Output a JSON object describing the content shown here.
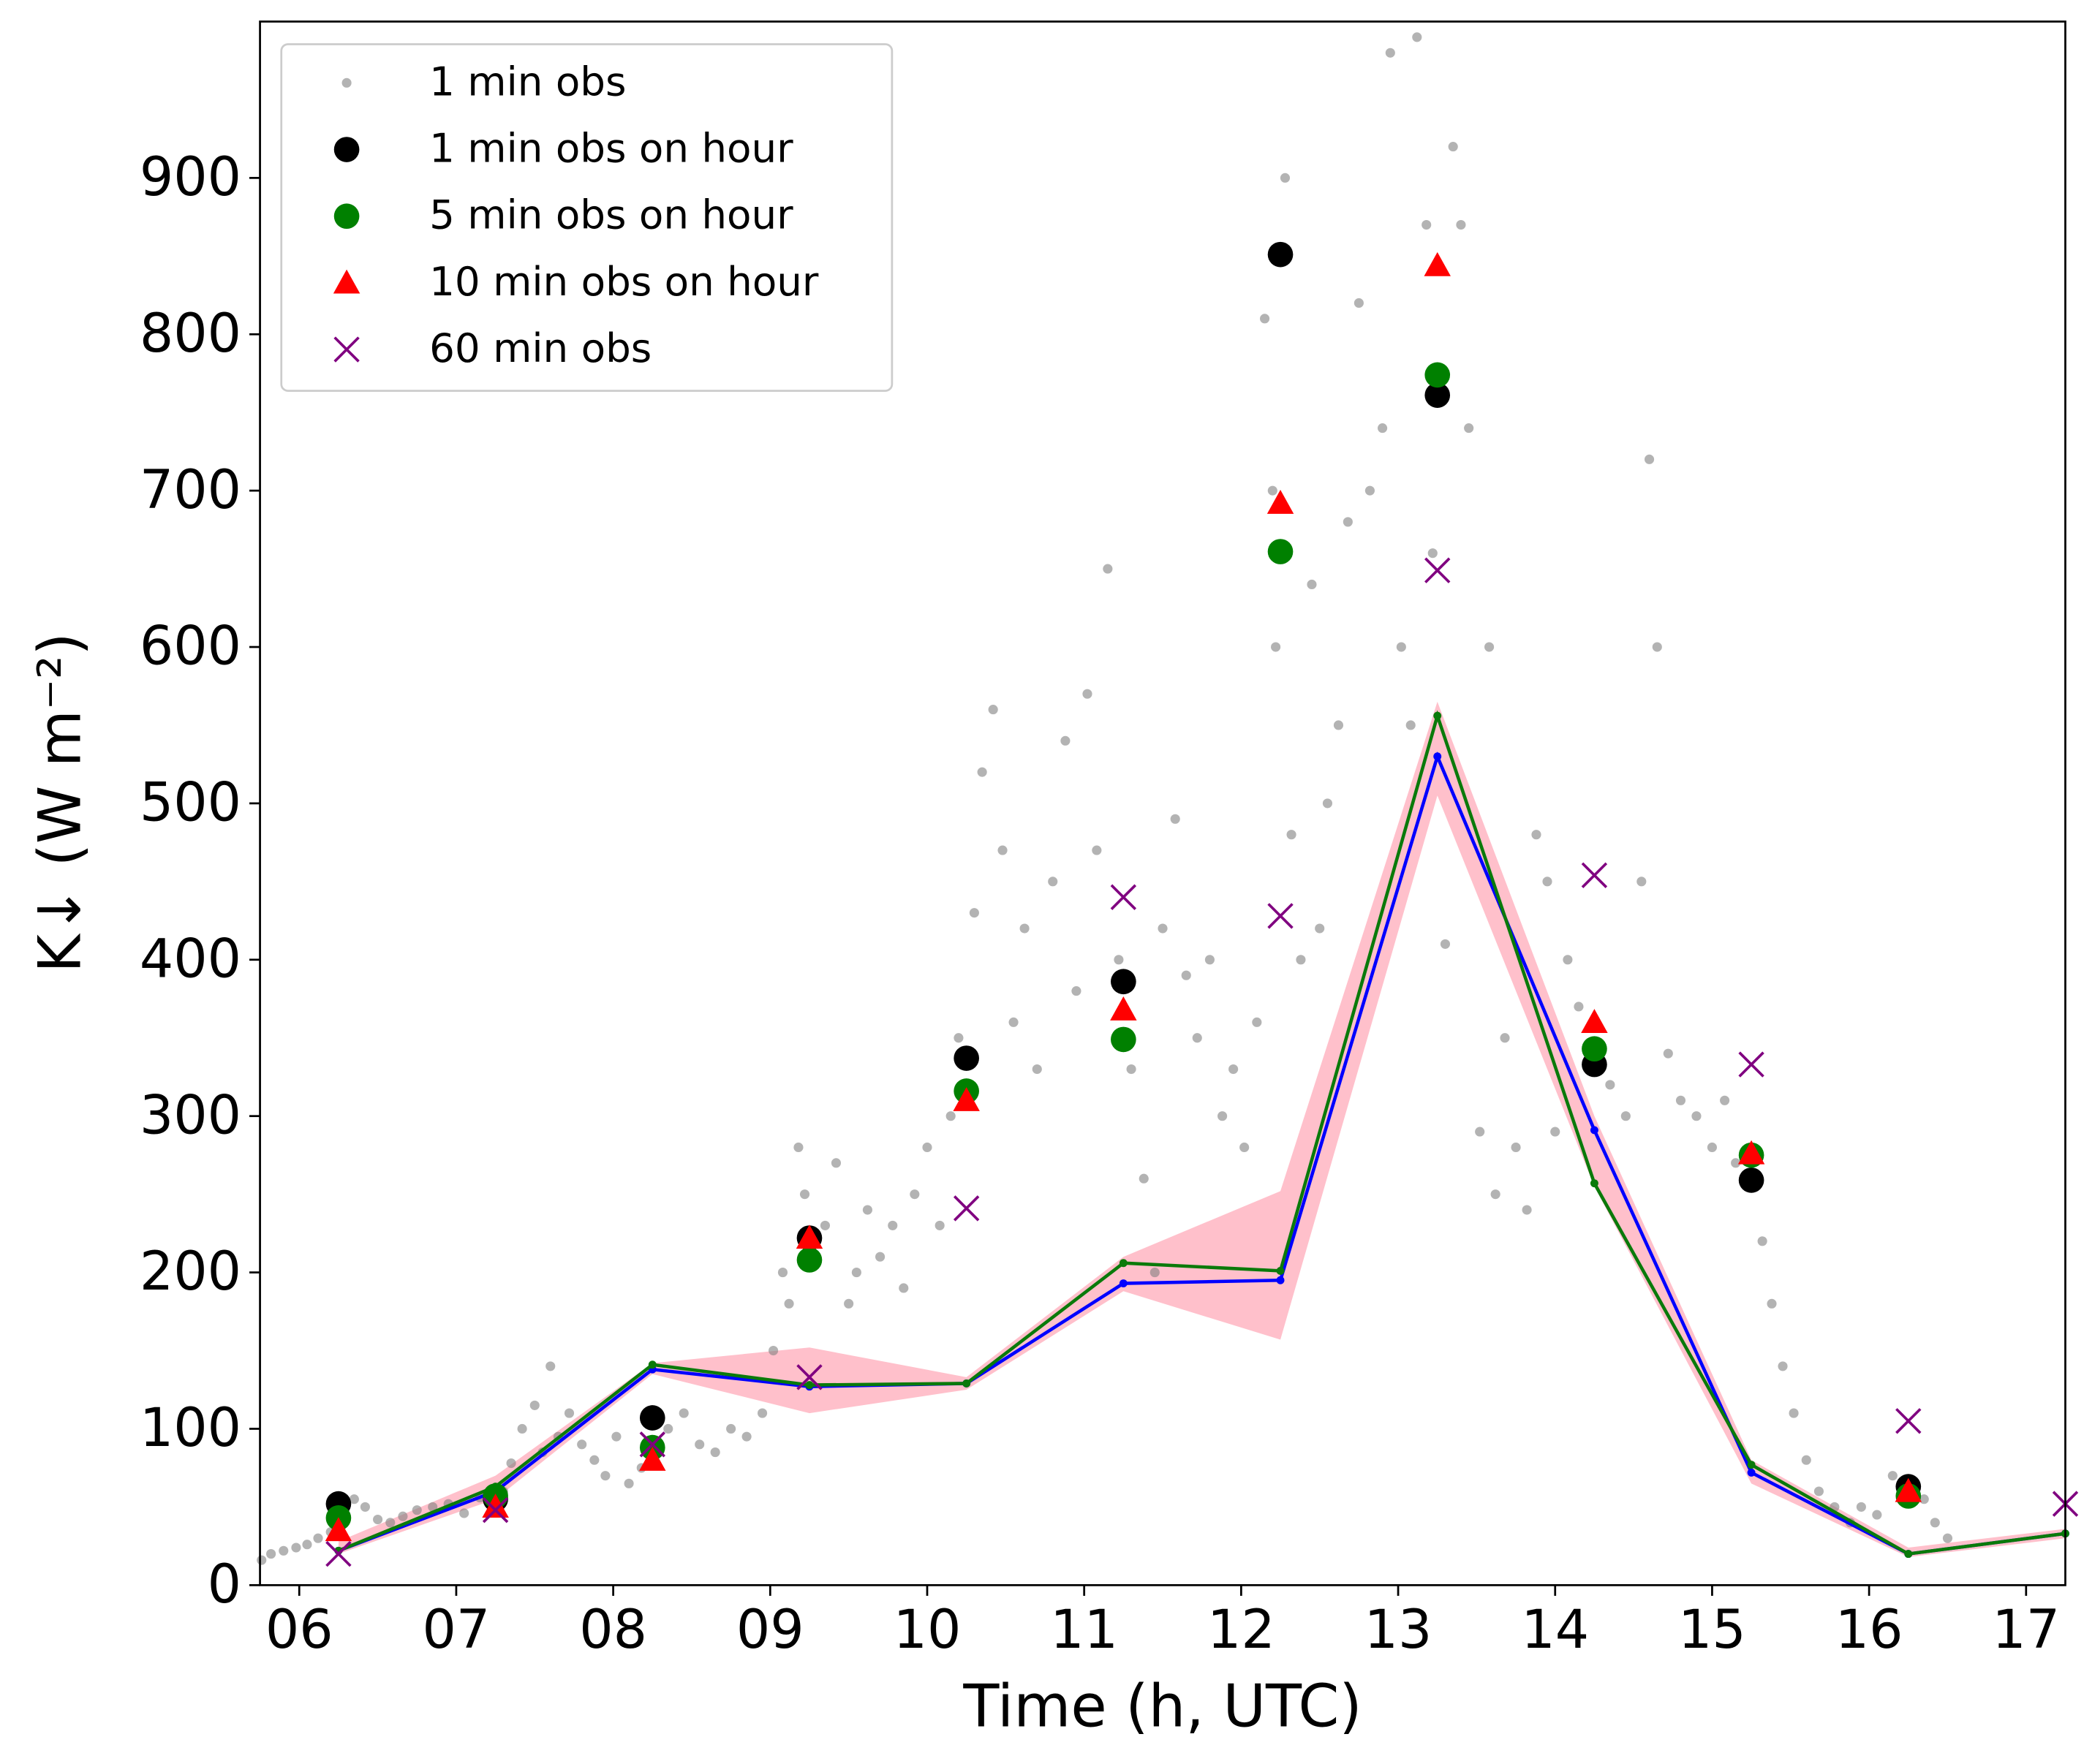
{
  "chart_data": {
    "type": "line",
    "xlabel": "Time (h, UTC)",
    "ylabel": "K↓ (W m⁻²)",
    "xlim": [
      5.75,
      17.25
    ],
    "ylim": [
      0,
      1000
    ],
    "xticks": [
      {
        "value": 6,
        "label": "06"
      },
      {
        "value": 7,
        "label": "07"
      },
      {
        "value": 8,
        "label": "08"
      },
      {
        "value": 9,
        "label": "09"
      },
      10,
      11,
      12,
      13,
      14,
      15,
      16,
      17
    ],
    "yticks": [
      0,
      100,
      200,
      300,
      400,
      500,
      600,
      700,
      800,
      900
    ],
    "legend": "upper-left",
    "band": {
      "color": "#ffc0cb",
      "x": [
        6.25,
        7.25,
        8.25,
        9.25,
        10.25,
        11.25,
        12.25,
        13.25,
        14.25,
        15.25,
        16.25,
        17.25
      ],
      "lower": [
        20,
        55,
        135,
        110,
        125,
        188,
        157,
        505,
        255,
        65,
        18,
        30
      ],
      "upper": [
        28,
        70,
        142,
        152,
        133,
        210,
        252,
        565,
        300,
        80,
        24,
        36
      ]
    },
    "series": [
      {
        "name": "1 min obs",
        "color": "#808080",
        "marker": "dot",
        "x": [
          5.76,
          5.82,
          5.9,
          5.98,
          6.05,
          6.12,
          6.2,
          6.3,
          6.35,
          6.42,
          6.5,
          6.58,
          6.66,
          6.75,
          6.85,
          6.95,
          7.05,
          7.15,
          7.3,
          7.35,
          7.42,
          7.5,
          7.55,
          7.6,
          7.65,
          7.72,
          7.8,
          7.88,
          7.95,
          8.02,
          8.1,
          8.18,
          8.35,
          8.45,
          8.55,
          8.65,
          8.75,
          8.85,
          8.95,
          9.02,
          9.08,
          9.12,
          9.18,
          9.22,
          9.35,
          9.42,
          9.5,
          9.55,
          9.62,
          9.7,
          9.78,
          9.85,
          9.92,
          10.0,
          10.08,
          10.15,
          10.2,
          10.3,
          10.35,
          10.42,
          10.48,
          10.55,
          10.62,
          10.7,
          10.8,
          10.88,
          10.95,
          11.02,
          11.08,
          11.15,
          11.22,
          11.3,
          11.38,
          11.45,
          11.5,
          11.58,
          11.65,
          11.72,
          11.8,
          11.88,
          11.95,
          12.02,
          12.1,
          12.15,
          12.2,
          12.22,
          12.28,
          12.32,
          12.38,
          12.45,
          12.5,
          12.55,
          12.62,
          12.68,
          12.75,
          12.82,
          12.9,
          12.95,
          13.02,
          13.08,
          13.12,
          13.18,
          13.22,
          13.3,
          13.35,
          13.4,
          13.45,
          13.52,
          13.58,
          13.62,
          13.68,
          13.75,
          13.82,
          13.88,
          13.95,
          14.0,
          14.08,
          14.15,
          14.22,
          14.35,
          14.45,
          14.55,
          14.6,
          14.65,
          14.72,
          14.8,
          14.9,
          15.0,
          15.08,
          15.15,
          15.32,
          15.38,
          15.45,
          15.52,
          15.6,
          15.68,
          15.78,
          15.88,
          15.95,
          16.05,
          16.15,
          16.35,
          16.42,
          16.5
        ],
        "values": [
          16,
          20,
          22,
          24,
          26,
          30,
          34,
          52,
          55,
          50,
          42,
          40,
          44,
          48,
          50,
          52,
          46,
          56,
          60,
          78,
          100,
          115,
          85,
          140,
          95,
          110,
          90,
          80,
          70,
          95,
          65,
          75,
          100,
          110,
          90,
          85,
          100,
          95,
          110,
          150,
          200,
          180,
          280,
          250,
          230,
          270,
          180,
          200,
          240,
          210,
          230,
          190,
          250,
          280,
          230,
          300,
          350,
          430,
          520,
          560,
          470,
          360,
          420,
          330,
          450,
          540,
          380,
          570,
          470,
          650,
          400,
          330,
          260,
          200,
          420,
          490,
          390,
          350,
          400,
          300,
          330,
          280,
          360,
          810,
          700,
          600,
          900,
          480,
          400,
          640,
          420,
          500,
          550,
          680,
          820,
          700,
          740,
          980,
          600,
          550,
          990,
          870,
          660,
          410,
          920,
          870,
          740,
          290,
          600,
          250,
          350,
          280,
          240,
          480,
          450,
          290,
          400,
          370,
          340,
          320,
          300,
          450,
          720,
          600,
          340,
          310,
          300,
          280,
          310,
          270,
          220,
          180,
          140,
          110,
          80,
          60,
          50,
          40,
          50,
          45,
          70,
          55,
          40,
          30
        ]
      },
      {
        "name": "1 min obs on hour",
        "color": "#000000",
        "marker": "circle",
        "x": [
          6.25,
          7.25,
          8.25,
          9.25,
          10.25,
          11.25,
          12.25,
          13.25,
          14.25,
          15.25,
          16.25
        ],
        "values": [
          52,
          55,
          107,
          222,
          337,
          386,
          851,
          761,
          333,
          259,
          63
        ]
      },
      {
        "name": "5 min obs on hour",
        "color": "#008000",
        "marker": "circle",
        "x": [
          6.25,
          7.25,
          8.25,
          9.25,
          10.25,
          11.25,
          12.25,
          13.25,
          14.25,
          15.25,
          16.25
        ],
        "values": [
          43,
          57,
          88,
          208,
          316,
          349,
          661,
          774,
          343,
          275,
          57
        ]
      },
      {
        "name": "10 min obs on hour",
        "color": "#ff0000",
        "marker": "triangle",
        "x": [
          6.25,
          7.25,
          8.25,
          9.25,
          10.25,
          11.25,
          12.25,
          13.25,
          14.25,
          15.25,
          16.25
        ],
        "values": [
          35,
          50,
          80,
          222,
          310,
          368,
          692,
          844,
          360,
          276,
          60
        ]
      },
      {
        "name": "60 min obs",
        "color": "#800080",
        "marker": "x",
        "x": [
          6.25,
          7.25,
          8.25,
          9.25,
          10.25,
          11.25,
          12.25,
          13.25,
          14.25,
          15.25,
          16.25,
          17.25
        ],
        "values": [
          20,
          48,
          90,
          133,
          241,
          440,
          428,
          649,
          454,
          333,
          105,
          52
        ]
      },
      {
        "color": "#0000ff",
        "marker": "line",
        "x": [
          6.25,
          7.25,
          8.25,
          9.25,
          10.25,
          11.25,
          12.25,
          13.25,
          14.25,
          15.25,
          16.25,
          17.25
        ],
        "values": [
          22,
          60,
          138,
          127,
          129,
          193,
          195,
          530,
          291,
          72,
          20,
          33
        ]
      },
      {
        "color": "#0a7a0a",
        "marker": "line",
        "x": [
          6.25,
          7.25,
          8.25,
          9.25,
          10.25,
          11.25,
          12.25,
          13.25,
          14.25,
          15.25,
          16.25,
          17.25
        ],
        "values": [
          22,
          63,
          141,
          128,
          129,
          206,
          201,
          556,
          257,
          77,
          20,
          33
        ]
      }
    ]
  }
}
